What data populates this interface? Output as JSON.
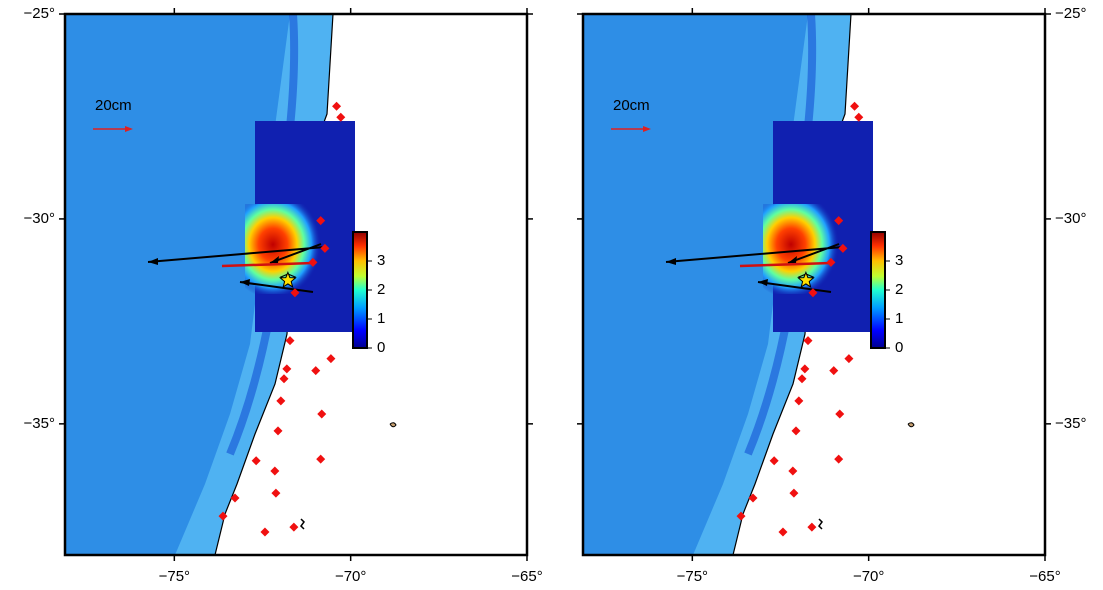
{
  "maps": [
    {
      "xlim": [
        -78.1,
        -65
      ],
      "ylim": [
        -38.2,
        -25
      ],
      "xticks": [
        {
          "value": -75,
          "label": "−75°"
        },
        {
          "value": -70,
          "label": "−70°"
        },
        {
          "value": -65,
          "label": "−65°"
        }
      ],
      "yticks": [
        {
          "value": -25,
          "label": "−25°"
        },
        {
          "value": -30,
          "label": "−30°"
        },
        {
          "value": -35,
          "label": "−35°"
        }
      ],
      "scale_label": "20cm",
      "colorbar": {
        "lim": [
          0,
          4
        ],
        "ticks": [
          0,
          1,
          2,
          3
        ]
      },
      "epicenter": [
        -71.78,
        -31.5
      ],
      "stations": [
        [
          -70.4,
          -27.25
        ],
        [
          -70.28,
          -27.52
        ],
        [
          -70.85,
          -30.04
        ],
        [
          -70.73,
          -30.72
        ],
        [
          -71.07,
          -31.06
        ],
        [
          -71.58,
          -31.8
        ],
        [
          -71.72,
          -32.97
        ],
        [
          -70.56,
          -33.41
        ],
        [
          -71.81,
          -33.66
        ],
        [
          -71.89,
          -33.9
        ],
        [
          -70.99,
          -33.7
        ],
        [
          -71.98,
          -34.44
        ],
        [
          -70.82,
          -34.76
        ],
        [
          -72.06,
          -35.17
        ],
        [
          -70.85,
          -35.86
        ],
        [
          -72.68,
          -35.9
        ],
        [
          -72.15,
          -36.15
        ],
        [
          -73.28,
          -36.81
        ],
        [
          -72.12,
          -36.69
        ],
        [
          -73.62,
          -37.25
        ],
        [
          -72.43,
          -37.64
        ],
        [
          -71.61,
          -37.52
        ]
      ]
    },
    {
      "xlim": [
        -78.1,
        -65
      ],
      "ylim": [
        -38.2,
        -25
      ],
      "xticks": [
        {
          "value": -75,
          "label": "−75°"
        },
        {
          "value": -70,
          "label": "−70°"
        },
        {
          "value": -65,
          "label": "−65°"
        }
      ],
      "yticks": [
        {
          "value": -25,
          "label": "−25°"
        },
        {
          "value": -30,
          "label": "−30°"
        },
        {
          "value": -35,
          "label": "−35°"
        }
      ],
      "scale_label": "20cm",
      "colorbar": {
        "lim": [
          0,
          4
        ],
        "ticks": [
          0,
          1,
          2,
          3
        ]
      },
      "epicenter": [
        -71.78,
        -31.5
      ],
      "stations": [
        [
          -70.4,
          -27.25
        ],
        [
          -70.28,
          -27.52
        ],
        [
          -70.85,
          -30.04
        ],
        [
          -70.73,
          -30.72
        ],
        [
          -71.07,
          -31.06
        ],
        [
          -71.58,
          -31.8
        ],
        [
          -71.72,
          -32.97
        ],
        [
          -70.56,
          -33.41
        ],
        [
          -71.81,
          -33.66
        ],
        [
          -71.89,
          -33.9
        ],
        [
          -70.99,
          -33.7
        ],
        [
          -71.98,
          -34.44
        ],
        [
          -70.82,
          -34.76
        ],
        [
          -72.06,
          -35.17
        ],
        [
          -70.85,
          -35.86
        ],
        [
          -72.68,
          -35.9
        ],
        [
          -72.15,
          -36.15
        ],
        [
          -73.28,
          -36.81
        ],
        [
          -72.12,
          -36.69
        ],
        [
          -73.62,
          -37.25
        ],
        [
          -72.43,
          -37.64
        ],
        [
          -71.61,
          -37.52
        ]
      ]
    }
  ]
}
